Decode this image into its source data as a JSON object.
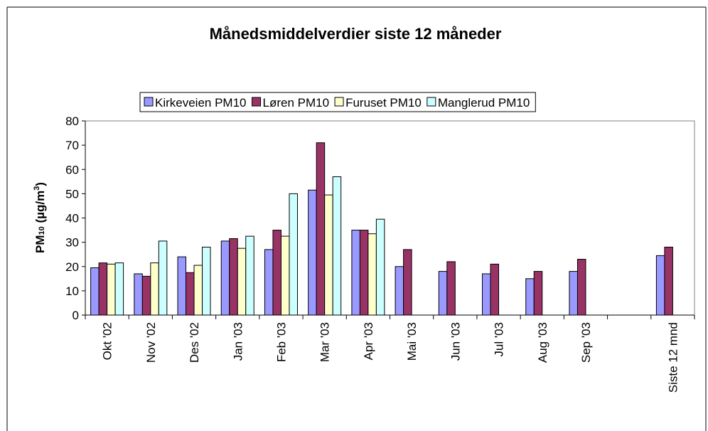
{
  "chart_data": {
    "type": "bar",
    "title": "Månedsmiddelverdier siste 12 måneder",
    "y_label_parts": [
      "PM",
      "10",
      " (µg/m",
      "3",
      ")"
    ],
    "categories": [
      "Okt '02",
      "Nov '02",
      "Des '02",
      "Jan '03",
      "Feb '03",
      "Mar '03",
      "Apr '03",
      "Mai '03",
      "Jun '03",
      "Jul '03",
      "Aug '03",
      "Sep '03",
      null,
      "Siste 12 mnd"
    ],
    "series": [
      {
        "name": "Kirkeveien PM10",
        "color": "#9999ff",
        "values": [
          19.5,
          17,
          24,
          30.5,
          27,
          51.5,
          35,
          20,
          18,
          17,
          15,
          18,
          null,
          24.5
        ]
      },
      {
        "name": "Løren PM10",
        "color": "#993366",
        "values": [
          21.5,
          16,
          17.5,
          31.5,
          35,
          71,
          35,
          27,
          22,
          21,
          18,
          23,
          null,
          28
        ]
      },
      {
        "name": "Furuset PM10",
        "color": "#ffffcc",
        "values": [
          21,
          21.5,
          20.5,
          27.5,
          32.5,
          49.5,
          33.5,
          null,
          null,
          null,
          null,
          null,
          null,
          null
        ]
      },
      {
        "name": "Manglerud PM10",
        "color": "#ccffff",
        "values": [
          21.5,
          30.5,
          28,
          32.5,
          50,
          57,
          39.5,
          null,
          null,
          null,
          null,
          null,
          null,
          null
        ]
      }
    ],
    "ylim": [
      0,
      80
    ],
    "yticks": [
      0,
      10,
      20,
      30,
      40,
      50,
      60,
      70,
      80
    ],
    "grid": false,
    "legend": "top"
  }
}
